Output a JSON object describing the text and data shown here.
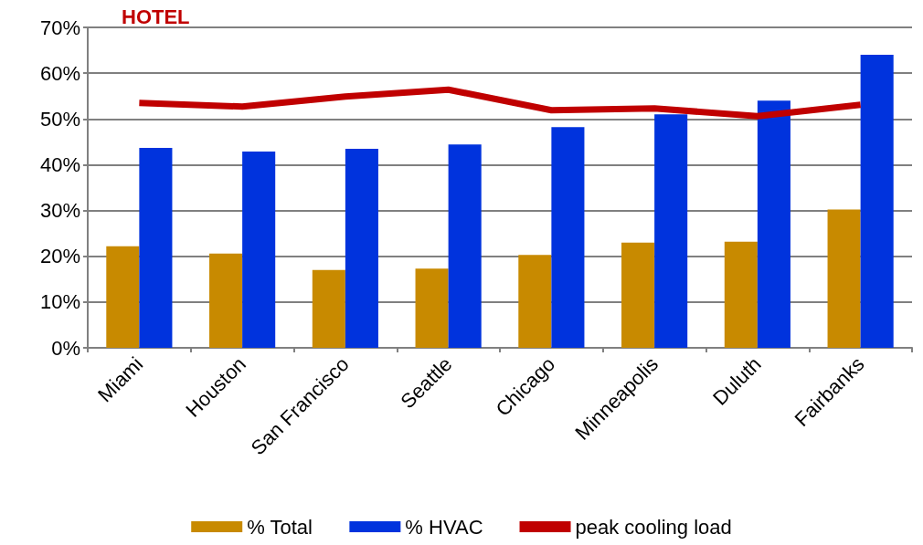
{
  "chart_data": {
    "type": "bar",
    "title": "HOTEL",
    "categories": [
      "Miami",
      "Houston",
      "San Francisco",
      "Seattle",
      "Chicago",
      "Minneapolis",
      "Duluth",
      "Fairbanks"
    ],
    "series": [
      {
        "name": "% Total",
        "color": "#c88a00",
        "values": [
          22.2,
          20.6,
          17.0,
          17.3,
          20.3,
          23.0,
          23.2,
          30.2
        ]
      },
      {
        "name": "% HVAC",
        "color": "#0033dd",
        "values": [
          43.7,
          42.9,
          43.5,
          44.4,
          48.2,
          51,
          54.0,
          64.0
        ]
      },
      {
        "name": "peak cooling load",
        "type": "line",
        "color": "#c00000",
        "values": [
          53.5,
          52.7,
          54.9,
          56.4,
          51.9,
          52.3,
          50.6,
          53.1
        ]
      }
    ],
    "ylim": [
      0,
      70
    ],
    "yticks": [
      {
        "value": 0,
        "label": "0%"
      },
      {
        "value": 10,
        "label": "10%"
      },
      {
        "value": 20,
        "label": "20%"
      },
      {
        "value": 30,
        "label": "30%"
      },
      {
        "value": 40,
        "label": "40%"
      },
      {
        "value": 50,
        "label": "50%"
      },
      {
        "value": 60,
        "label": "60%"
      },
      {
        "value": 70,
        "label": "70%"
      }
    ],
    "grid": "y",
    "legend": "bottom",
    "marker": "none"
  }
}
